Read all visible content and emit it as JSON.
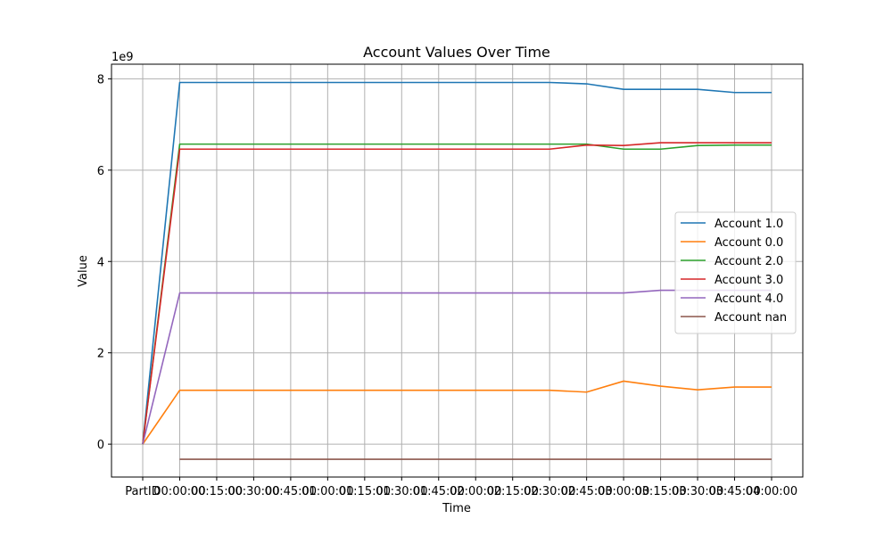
{
  "chart_data": {
    "type": "line",
    "title": "Account Values Over Time",
    "xlabel": "Time",
    "ylabel": "Value",
    "y_scale_label": "1e9",
    "y_scale": 1000000000,
    "categories": [
      "PartID",
      "00:00:00",
      "00:15:00",
      "00:30:00",
      "00:45:00",
      "01:00:00",
      "01:15:00",
      "01:30:00",
      "01:45:00",
      "02:00:00",
      "02:15:00",
      "02:30:00",
      "02:45:00",
      "03:00:00",
      "03:15:00",
      "03:30:00",
      "03:45:00",
      "04:00:00"
    ],
    "ylim": [
      -0.72,
      8.32
    ],
    "yticks": [
      0,
      2,
      4,
      6,
      8
    ],
    "ytick_labels": [
      "0",
      "2",
      "4",
      "6",
      "8"
    ],
    "grid": true,
    "legend_position": "center-right",
    "series": [
      {
        "name": "Account 1.0",
        "color": "#1f77b4",
        "values": [
          0.0,
          7.92,
          7.92,
          7.92,
          7.92,
          7.92,
          7.92,
          7.92,
          7.92,
          7.92,
          7.92,
          7.92,
          7.89,
          7.77,
          7.77,
          7.77,
          7.7,
          7.7
        ]
      },
      {
        "name": "Account 0.0",
        "color": "#ff7f0e",
        "values": [
          0.0,
          1.18,
          1.18,
          1.18,
          1.18,
          1.18,
          1.18,
          1.18,
          1.18,
          1.18,
          1.18,
          1.18,
          1.14,
          1.38,
          1.27,
          1.19,
          1.25,
          1.25
        ]
      },
      {
        "name": "Account 2.0",
        "color": "#2ca02c",
        "values": [
          0.0,
          6.57,
          6.57,
          6.57,
          6.57,
          6.57,
          6.57,
          6.57,
          6.57,
          6.57,
          6.57,
          6.57,
          6.57,
          6.46,
          6.46,
          6.54,
          6.55,
          6.55
        ]
      },
      {
        "name": "Account 3.0",
        "color": "#d62728",
        "values": [
          0.0,
          6.46,
          6.46,
          6.46,
          6.46,
          6.46,
          6.46,
          6.46,
          6.46,
          6.46,
          6.46,
          6.46,
          6.55,
          6.54,
          6.6,
          6.6,
          6.6,
          6.6
        ]
      },
      {
        "name": "Account 4.0",
        "color": "#9467bd",
        "values": [
          0.0,
          3.31,
          3.31,
          3.31,
          3.31,
          3.31,
          3.31,
          3.31,
          3.31,
          3.31,
          3.31,
          3.31,
          3.31,
          3.31,
          3.37,
          3.37,
          3.37,
          3.37
        ]
      },
      {
        "name": "Account nan",
        "color": "#8c564b",
        "values": [
          null,
          -0.33,
          -0.33,
          -0.33,
          -0.33,
          -0.33,
          -0.33,
          -0.33,
          -0.33,
          -0.33,
          -0.33,
          -0.33,
          -0.33,
          -0.33,
          -0.33,
          -0.33,
          -0.33,
          -0.33
        ]
      }
    ]
  }
}
